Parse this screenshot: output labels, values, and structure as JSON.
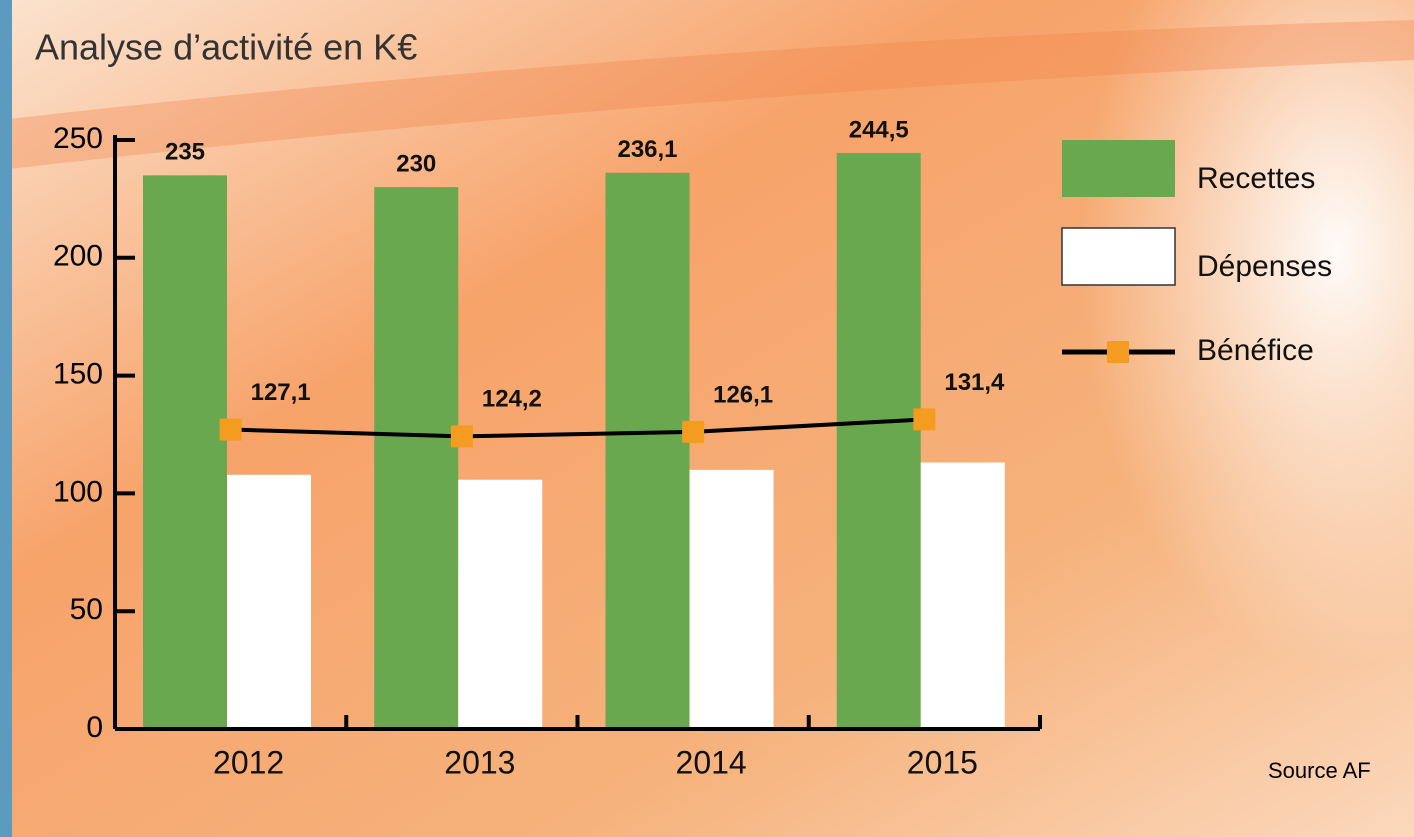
{
  "chart_data": {
    "type": "bar_line",
    "title": "Analyse d’activité en K€",
    "source": "Source AF",
    "categories": [
      "2012",
      "2013",
      "2014",
      "2015"
    ],
    "series": [
      {
        "name": "Recettes",
        "type": "bar",
        "color": "#6aa84f",
        "values": [
          235,
          230,
          236.1,
          244.5
        ],
        "value_labels": [
          "235",
          "230",
          "236,1",
          "244,5"
        ]
      },
      {
        "name": "Dépenses",
        "type": "bar",
        "color": "#ffffff",
        "values": [
          107.9,
          105.8,
          110,
          113.1
        ]
      },
      {
        "name": "Bénéfice",
        "type": "line",
        "color": "#000000",
        "marker_color": "#f39c1f",
        "values": [
          127.1,
          124.2,
          126.1,
          131.4
        ],
        "value_labels": [
          "127,1",
          "124,2",
          "126,1",
          "131,4"
        ]
      }
    ],
    "ylim": [
      0,
      250
    ],
    "yticks": [
      0,
      50,
      100,
      150,
      200,
      250
    ],
    "grid": false,
    "legend": "right"
  }
}
